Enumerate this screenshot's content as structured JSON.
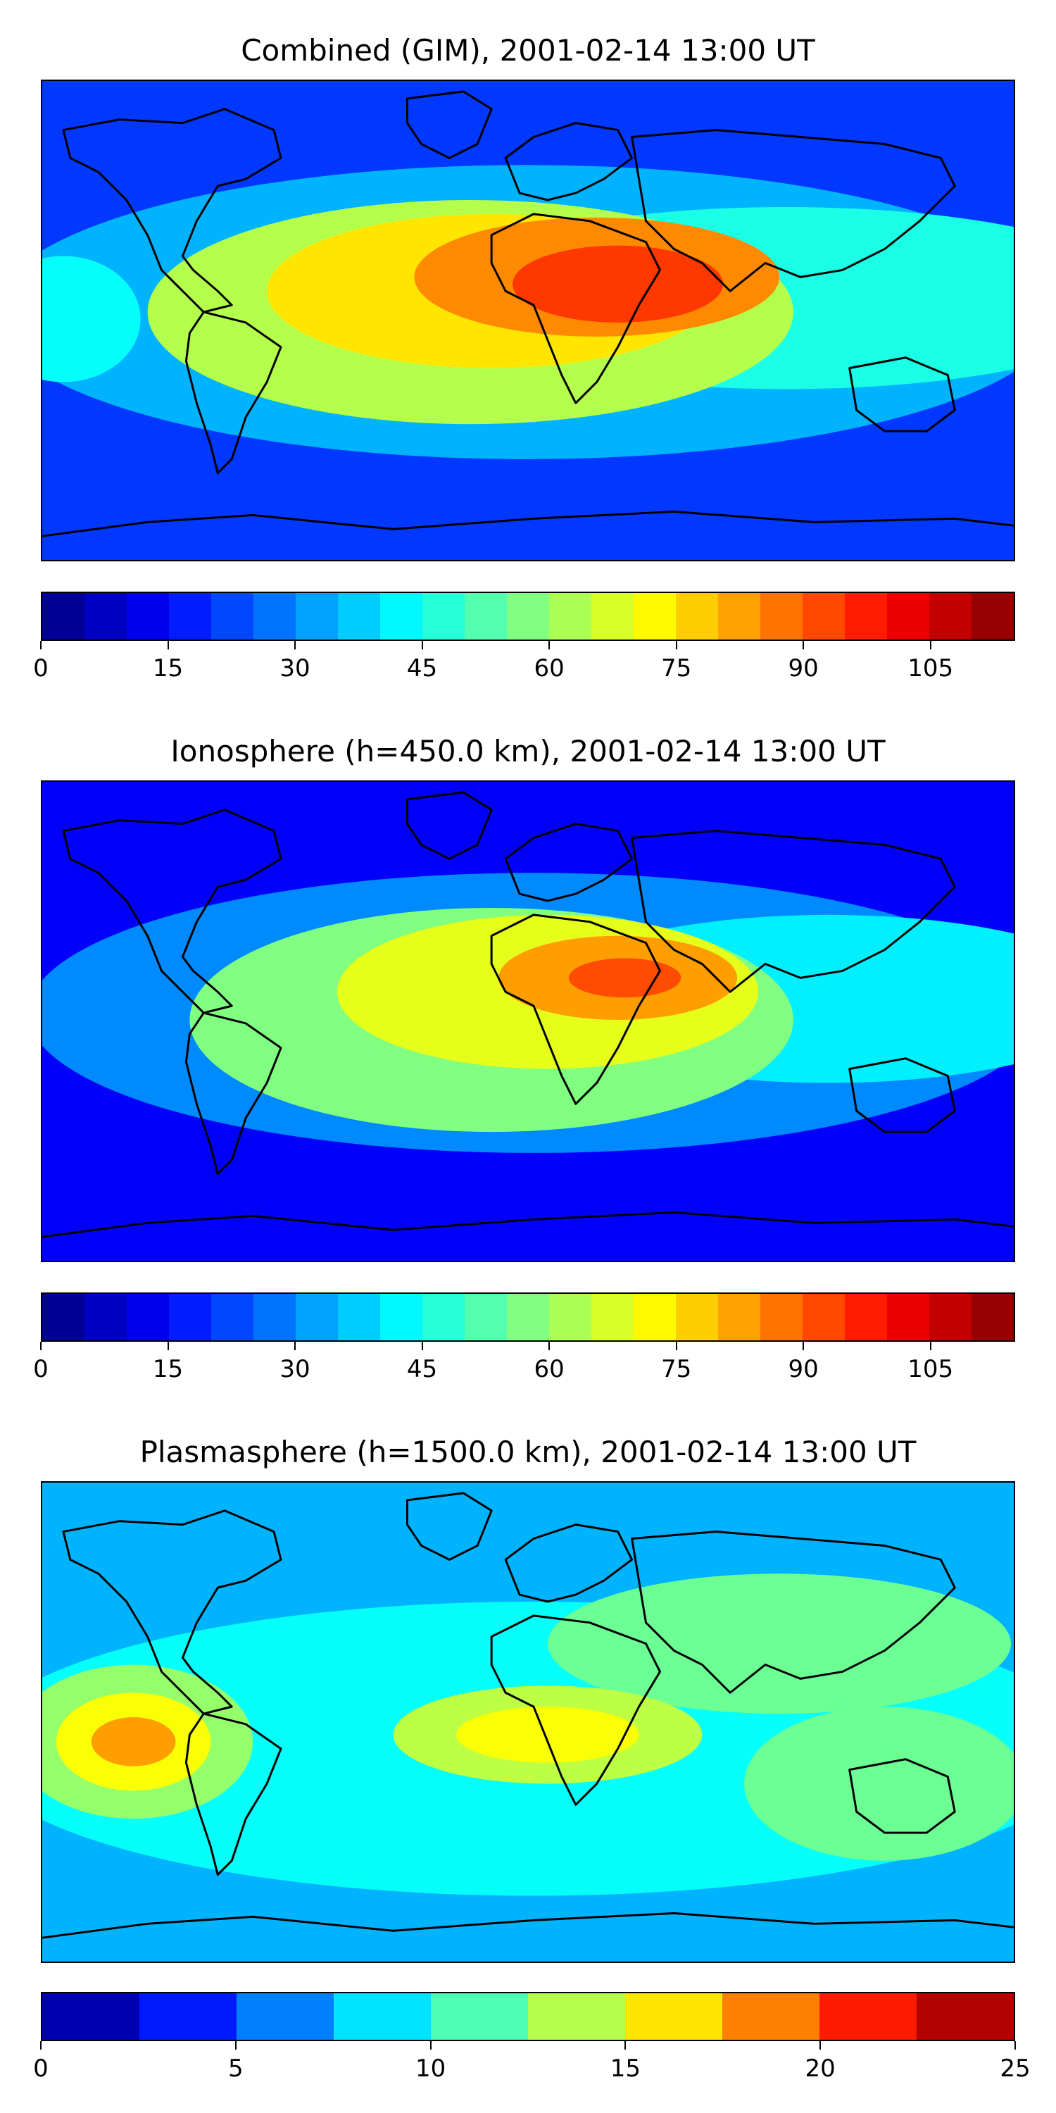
{
  "panels": [
    {
      "id": "combined",
      "title": "Combined (GIM), 2001-02-14 13:00 UT",
      "colorbar": {
        "min": 0,
        "max": 115,
        "step": 5,
        "tick_labels": [
          "0",
          "15",
          "30",
          "45",
          "60",
          "75",
          "90",
          "105"
        ],
        "tick_values": [
          0,
          15,
          30,
          45,
          60,
          75,
          90,
          105
        ]
      },
      "field_level_fraction": {
        "background": 0.18,
        "peak": 0.82,
        "equatorial_band": 0.45
      }
    },
    {
      "id": "ionosphere",
      "title": "Ionosphere  (h=450.0 km), 2001-02-14 13:00 UT",
      "colorbar": {
        "min": 0,
        "max": 115,
        "step": 5,
        "tick_labels": [
          "0",
          "15",
          "30",
          "45",
          "60",
          "75",
          "90",
          "105"
        ],
        "tick_values": [
          0,
          15,
          30,
          45,
          60,
          75,
          90,
          105
        ]
      },
      "field_level_fraction": {
        "background": 0.12,
        "peak": 0.75,
        "equatorial_band": 0.5
      }
    },
    {
      "id": "plasmasphere",
      "title": "Plasmasphere (h=1500.0 km), 2001-02-14 13:00 UT",
      "colorbar": {
        "min": 0,
        "max": 25,
        "step": 2.5,
        "tick_labels": [
          "0",
          "5",
          "10",
          "15",
          "20",
          "25"
        ],
        "tick_values": [
          0,
          5,
          10,
          15,
          20,
          25
        ]
      },
      "field_level_fraction": {
        "background": 0.3,
        "peak": 0.7,
        "equatorial_band": 0.45
      }
    }
  ],
  "colormap": "jet",
  "coastline_color": "#000000"
}
